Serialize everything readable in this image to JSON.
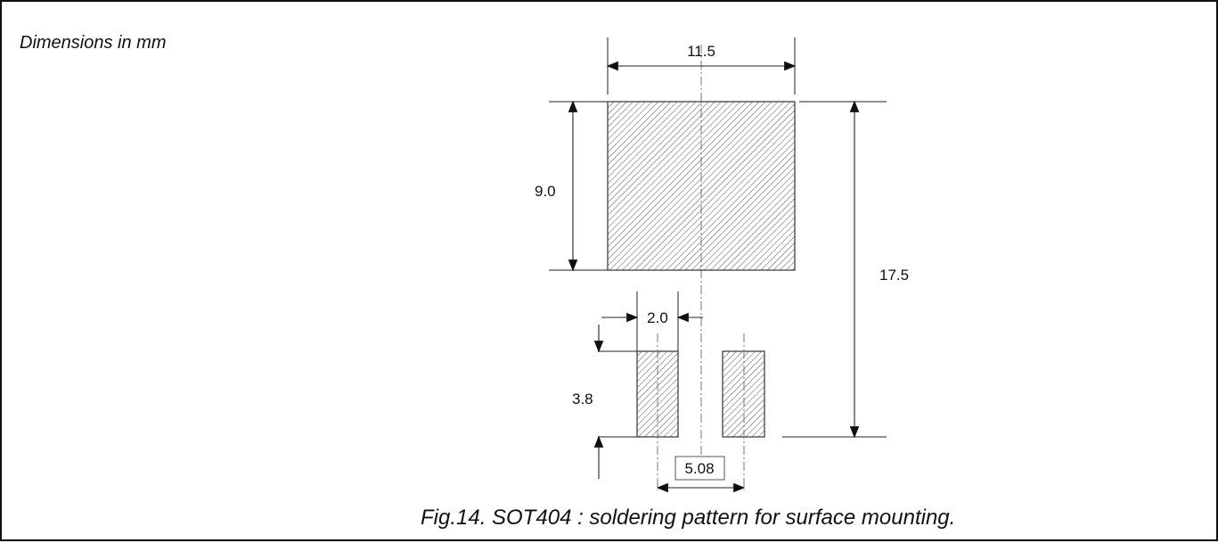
{
  "labels": {
    "units": "Dimensions in mm",
    "caption": "Fig.14.  SOT404 : soldering pattern for surface mounting."
  },
  "dimensions": {
    "large_pad_width": "11.5",
    "large_pad_height": "9.0",
    "overall_height": "17.5",
    "small_pad_width": "2.0",
    "small_pad_height": "3.8",
    "pad_pitch": "5.08"
  },
  "colors": {
    "line": "#222222",
    "hatch": "#555555",
    "background": "#ffffff"
  }
}
